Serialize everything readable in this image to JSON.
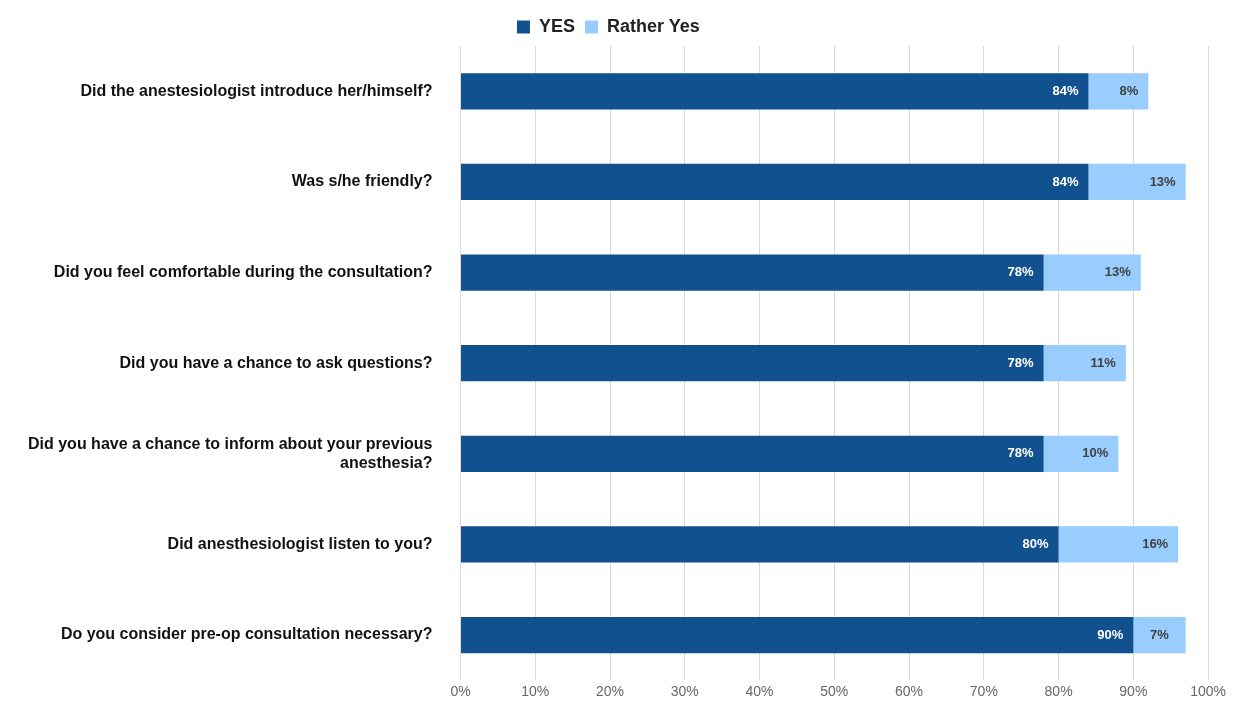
{
  "chart_data": {
    "type": "bar",
    "orientation": "horizontal",
    "stacked": true,
    "categories": [
      "Did the anestesiologist introduce her/himself?",
      "Was s/he friendly?",
      "Did you feel comfortable during the consultation?",
      "Did you have a chance to ask questions?",
      "Did you have a chance to inform about your previous anesthesia?",
      "Did anesthesiologist listen to you?",
      "Do you consider pre-op consultation necessary?"
    ],
    "series": [
      {
        "name": "YES",
        "color": "#12518f",
        "values": [
          84,
          84,
          78,
          78,
          78,
          80,
          90
        ],
        "value_labels": [
          "84%",
          "84%",
          "78%",
          "78%",
          "78%",
          "80%",
          "90%"
        ]
      },
      {
        "name": "Rather Yes",
        "color": "#99cdfd",
        "values": [
          8,
          13,
          13,
          11,
          10,
          16,
          7
        ],
        "value_labels": [
          "8%",
          "13%",
          "13%",
          "11%",
          "10%",
          "16%",
          "7%"
        ]
      }
    ],
    "xlim": [
      0,
      100
    ],
    "xticks": [
      {
        "value": 0,
        "label": "0%"
      },
      {
        "value": 10,
        "label": "10%"
      },
      {
        "value": 20,
        "label": "20%"
      },
      {
        "value": 30,
        "label": "30%"
      },
      {
        "value": 40,
        "label": "40%"
      },
      {
        "value": 50,
        "label": "50%"
      },
      {
        "value": 60,
        "label": "60%"
      },
      {
        "value": 70,
        "label": "70%"
      },
      {
        "value": 80,
        "label": "80%"
      },
      {
        "value": 90,
        "label": "90%"
      },
      {
        "value": 100,
        "label": "100%"
      }
    ],
    "grid": "x",
    "legend": "top"
  }
}
